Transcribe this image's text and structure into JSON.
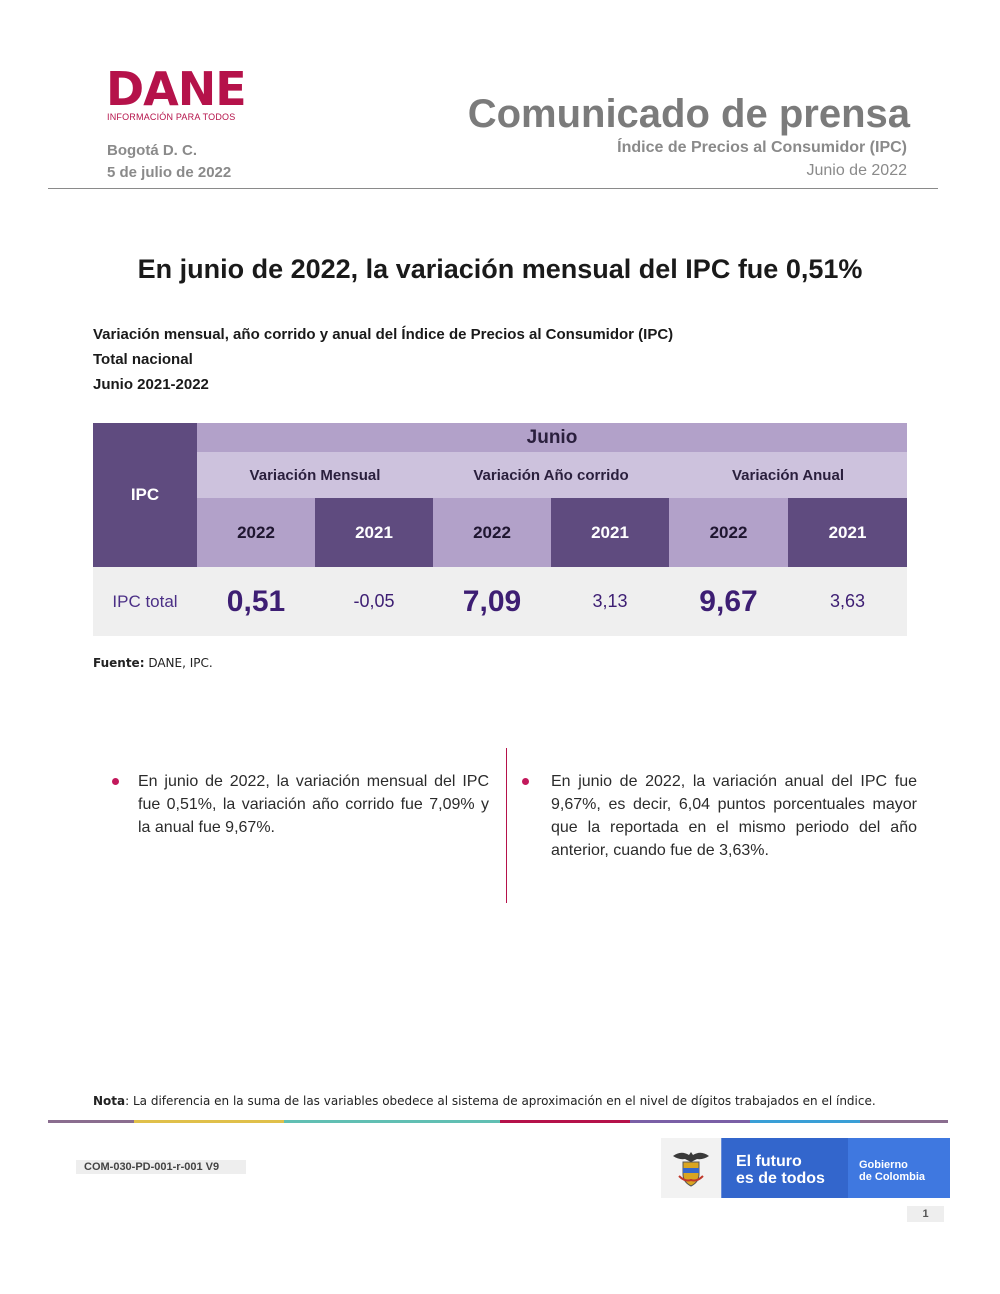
{
  "header": {
    "logo_text": "DANE",
    "logo_tagline": "INFORMACIÓN PARA TODOS",
    "city": "Bogotá D. C.",
    "date": "5 de julio de 2022",
    "doc_type": "Comunicado de prensa",
    "doc_subject": "Índice de Precios al Consumidor (IPC)",
    "doc_period": "Junio de 2022"
  },
  "headline": "En junio de 2022, la variación mensual del IPC fue 0,51%",
  "table_caption": {
    "line1": "Variación mensual, año corrido y anual del Índice de Precios al Consumidor (IPC)",
    "line2": "Total nacional",
    "line3": "Junio 2021-2022"
  },
  "table": {
    "corner_label": "IPC",
    "month_header": "Junio",
    "groups": [
      "Variación Mensual",
      "Variación Año corrido",
      "Variación Anual"
    ],
    "years": [
      "2022",
      "2021",
      "2022",
      "2021",
      "2022",
      "2021"
    ],
    "row_label": "IPC total",
    "values": [
      "0,51",
      "-0,05",
      "7,09",
      "3,13",
      "9,67",
      "3,63"
    ],
    "colors": {
      "dark": "#5f4b7f",
      "light": "#b2a1c9",
      "lighter": "#cdc2dd",
      "row_bg": "#efefef"
    }
  },
  "source": {
    "label": "Fuente:",
    "text": " DANE, IPC."
  },
  "bullets": [
    "En junio de 2022, la variación mensual del IPC fue 0,51%, la variación año corrido fue 7,09% y la anual fue 9,67%.",
    "En junio de 2022, la variación anual del IPC fue 9,67%, es decir, 6,04 puntos porcentuales mayor que la reportada en el mismo periodo del año anterior, cuando fue de 3,63%."
  ],
  "note": {
    "label": "Nota",
    "text": ": La diferencia en la suma de las variables obedece al sistema de aproximación en el nivel de dígitos trabajados en el índice."
  },
  "footer": {
    "doc_code": "COM-030-PD-001-r-001 V9",
    "gov_slogan_1": "El futuro",
    "gov_slogan_2": "es de todos",
    "gov_name_1": "Gobierno",
    "gov_name_2": "de Colombia",
    "page_number": "1",
    "color_bar": [
      "#8a6d8f",
      "#e0c04a",
      "#61bfb3",
      "#b5124a",
      "#7a5fa6",
      "#3a9fd6",
      "#8a6d8f"
    ]
  }
}
